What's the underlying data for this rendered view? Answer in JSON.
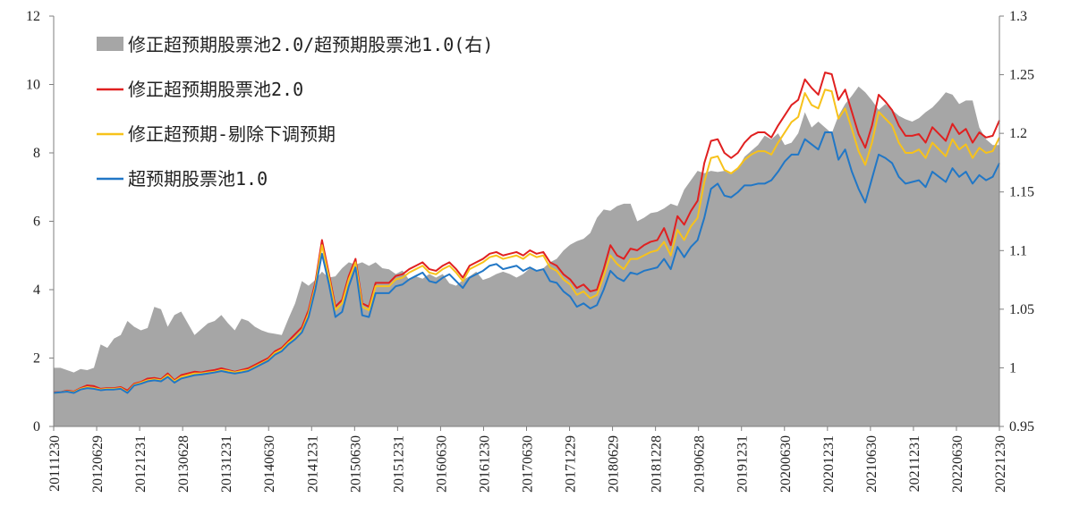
{
  "chart_data": {
    "type": "line",
    "title": "",
    "xlabel": "",
    "ylabel": "",
    "ylim": [
      0,
      12
    ],
    "y2lim": [
      0.95,
      1.3
    ],
    "yticks": [
      0,
      2,
      4,
      6,
      8,
      10,
      12
    ],
    "y2ticks": [
      "0.95",
      "1",
      "1.05",
      "1.1",
      "1.15",
      "1.2",
      "1.25",
      "1.3"
    ],
    "x_tick_labels": [
      "20111230",
      "20120629",
      "20121231",
      "20130628",
      "20131231",
      "20140630",
      "20141231",
      "20150630",
      "20151231",
      "20160630",
      "20161230",
      "20170630",
      "20171229",
      "20180629",
      "20181228",
      "20190628",
      "20191231",
      "20200630",
      "20201231",
      "20210630",
      "20211231",
      "20220630",
      "20221230"
    ],
    "grid": false,
    "legend_position": "top-left",
    "series": [
      {
        "name": "修正超预期股票池2.0/超预期股票池1.0(右)",
        "type": "area",
        "axis": "right",
        "color": "#a6a6a6",
        "values": [
          1.0,
          1.0,
          0.998,
          0.996,
          0.999,
          0.998,
          1.0,
          1.02,
          1.017,
          1.025,
          1.028,
          1.04,
          1.035,
          1.032,
          1.034,
          1.052,
          1.05,
          1.035,
          1.045,
          1.048,
          1.038,
          1.028,
          1.033,
          1.038,
          1.04,
          1.045,
          1.038,
          1.032,
          1.042,
          1.04,
          1.035,
          1.032,
          1.03,
          1.029,
          1.028,
          1.042,
          1.055,
          1.074,
          1.07,
          1.075,
          1.082,
          1.077,
          1.078,
          1.085,
          1.09,
          1.088,
          1.09,
          1.087,
          1.09,
          1.085,
          1.084,
          1.08,
          1.083,
          1.075,
          1.078,
          1.076,
          1.08,
          1.077,
          1.08,
          1.072,
          1.07,
          1.075,
          1.078,
          1.082,
          1.075,
          1.077,
          1.08,
          1.082,
          1.08,
          1.077,
          1.08,
          1.085,
          1.082,
          1.085,
          1.09,
          1.093,
          1.1,
          1.105,
          1.108,
          1.11,
          1.115,
          1.128,
          1.135,
          1.134,
          1.138,
          1.14,
          1.14,
          1.125,
          1.128,
          1.132,
          1.133,
          1.136,
          1.14,
          1.138,
          1.152,
          1.16,
          1.168,
          1.166,
          1.168,
          1.167,
          1.168,
          1.165,
          1.17,
          1.18,
          1.185,
          1.19,
          1.198,
          1.195,
          1.2,
          1.19,
          1.192,
          1.2,
          1.218,
          1.205,
          1.21,
          1.205,
          1.2,
          1.215,
          1.225,
          1.232,
          1.24,
          1.235,
          1.228,
          1.22,
          1.225,
          1.22,
          1.215,
          1.212,
          1.21,
          1.213,
          1.218,
          1.222,
          1.228,
          1.235,
          1.233,
          1.225,
          1.228,
          1.228,
          1.205,
          1.195,
          1.19,
          1.19
        ]
      },
      {
        "name": "修正超预期股票池2.0",
        "type": "line",
        "axis": "left",
        "color": "#e02020",
        "values": [
          1.0,
          1.0,
          1.05,
          1.02,
          1.12,
          1.2,
          1.18,
          1.1,
          1.12,
          1.12,
          1.15,
          1.05,
          1.25,
          1.3,
          1.4,
          1.42,
          1.38,
          1.55,
          1.35,
          1.5,
          1.55,
          1.6,
          1.58,
          1.62,
          1.65,
          1.7,
          1.65,
          1.6,
          1.65,
          1.7,
          1.8,
          1.9,
          2.0,
          2.2,
          2.3,
          2.5,
          2.7,
          2.9,
          3.4,
          4.2,
          5.45,
          4.5,
          3.5,
          3.7,
          4.4,
          4.9,
          3.6,
          3.5,
          4.2,
          4.2,
          4.2,
          4.4,
          4.45,
          4.6,
          4.7,
          4.8,
          4.6,
          4.55,
          4.7,
          4.8,
          4.6,
          4.35,
          4.7,
          4.8,
          4.9,
          5.05,
          5.1,
          5.0,
          5.05,
          5.1,
          5.0,
          5.15,
          5.05,
          5.1,
          4.8,
          4.7,
          4.45,
          4.3,
          4.05,
          4.15,
          3.95,
          4.0,
          4.6,
          5.3,
          5.0,
          4.9,
          5.2,
          5.15,
          5.3,
          5.4,
          5.45,
          5.8,
          5.3,
          6.15,
          5.9,
          6.3,
          6.6,
          7.7,
          8.35,
          8.4,
          8.0,
          7.85,
          8.0,
          8.3,
          8.5,
          8.6,
          8.6,
          8.45,
          8.8,
          9.1,
          9.4,
          9.55,
          10.15,
          9.9,
          9.7,
          10.35,
          10.3,
          9.55,
          9.85,
          9.2,
          8.55,
          8.15,
          8.8,
          9.7,
          9.5,
          9.25,
          8.8,
          8.5,
          8.5,
          8.55,
          8.3,
          8.75,
          8.55,
          8.35,
          8.85,
          8.55,
          8.7,
          8.3,
          8.6,
          8.45,
          8.5,
          8.95
        ]
      },
      {
        "name": "修正超预期-剔除下调预期",
        "type": "line",
        "axis": "left",
        "color": "#f7c21b",
        "values": [
          0.98,
          1.0,
          1.03,
          1.0,
          1.1,
          1.15,
          1.12,
          1.08,
          1.1,
          1.1,
          1.12,
          1.0,
          1.22,
          1.28,
          1.35,
          1.38,
          1.35,
          1.5,
          1.32,
          1.45,
          1.5,
          1.55,
          1.55,
          1.58,
          1.6,
          1.65,
          1.62,
          1.58,
          1.62,
          1.65,
          1.75,
          1.85,
          1.95,
          2.15,
          2.25,
          2.45,
          2.6,
          2.8,
          3.3,
          4.1,
          5.3,
          4.4,
          3.4,
          3.6,
          4.3,
          4.8,
          3.5,
          3.4,
          4.1,
          4.1,
          4.1,
          4.3,
          4.35,
          4.5,
          4.6,
          4.7,
          4.5,
          4.45,
          4.6,
          4.7,
          4.5,
          4.25,
          4.6,
          4.7,
          4.8,
          4.95,
          5.0,
          4.9,
          4.95,
          5.0,
          4.9,
          5.05,
          4.95,
          5.0,
          4.65,
          4.55,
          4.3,
          4.15,
          3.85,
          3.95,
          3.75,
          3.85,
          4.4,
          5.0,
          4.75,
          4.6,
          4.9,
          4.9,
          5.0,
          5.1,
          5.15,
          5.4,
          5.0,
          5.75,
          5.45,
          5.85,
          6.1,
          7.15,
          7.85,
          7.9,
          7.5,
          7.4,
          7.55,
          7.8,
          7.95,
          8.05,
          8.05,
          7.95,
          8.3,
          8.6,
          8.9,
          9.05,
          9.75,
          9.4,
          9.3,
          9.85,
          9.8,
          9.0,
          9.3,
          8.7,
          8.05,
          7.65,
          8.3,
          9.2,
          9.0,
          8.8,
          8.3,
          8.0,
          8.0,
          8.1,
          7.85,
          8.3,
          8.1,
          7.9,
          8.4,
          8.1,
          8.25,
          7.85,
          8.15,
          8.0,
          8.05,
          8.45
        ]
      },
      {
        "name": "超预期股票池1.0",
        "type": "line",
        "axis": "left",
        "color": "#2177c6",
        "values": [
          0.98,
          1.0,
          1.02,
          0.98,
          1.08,
          1.12,
          1.1,
          1.06,
          1.08,
          1.08,
          1.1,
          0.98,
          1.2,
          1.25,
          1.32,
          1.35,
          1.32,
          1.45,
          1.28,
          1.4,
          1.45,
          1.5,
          1.52,
          1.55,
          1.58,
          1.62,
          1.58,
          1.55,
          1.58,
          1.62,
          1.72,
          1.82,
          1.92,
          2.1,
          2.2,
          2.4,
          2.55,
          2.75,
          3.2,
          4.0,
          5.05,
          4.2,
          3.2,
          3.35,
          4.1,
          4.65,
          3.25,
          3.2,
          3.9,
          3.9,
          3.9,
          4.1,
          4.15,
          4.3,
          4.4,
          4.5,
          4.25,
          4.2,
          4.35,
          4.45,
          4.25,
          4.05,
          4.35,
          4.45,
          4.55,
          4.7,
          4.75,
          4.6,
          4.65,
          4.7,
          4.55,
          4.65,
          4.55,
          4.6,
          4.25,
          4.2,
          3.95,
          3.8,
          3.5,
          3.6,
          3.45,
          3.55,
          4.0,
          4.55,
          4.35,
          4.25,
          4.5,
          4.45,
          4.55,
          4.6,
          4.65,
          4.9,
          4.6,
          5.25,
          4.95,
          5.25,
          5.45,
          6.1,
          6.95,
          7.1,
          6.75,
          6.7,
          6.85,
          7.05,
          7.05,
          7.1,
          7.1,
          7.2,
          7.45,
          7.75,
          7.95,
          7.95,
          8.4,
          8.25,
          8.1,
          8.6,
          8.6,
          7.8,
          8.1,
          7.45,
          6.95,
          6.55,
          7.25,
          7.95,
          7.85,
          7.7,
          7.3,
          7.1,
          7.15,
          7.2,
          7.0,
          7.45,
          7.3,
          7.15,
          7.55,
          7.3,
          7.45,
          7.1,
          7.35,
          7.2,
          7.3,
          7.7
        ]
      }
    ]
  }
}
